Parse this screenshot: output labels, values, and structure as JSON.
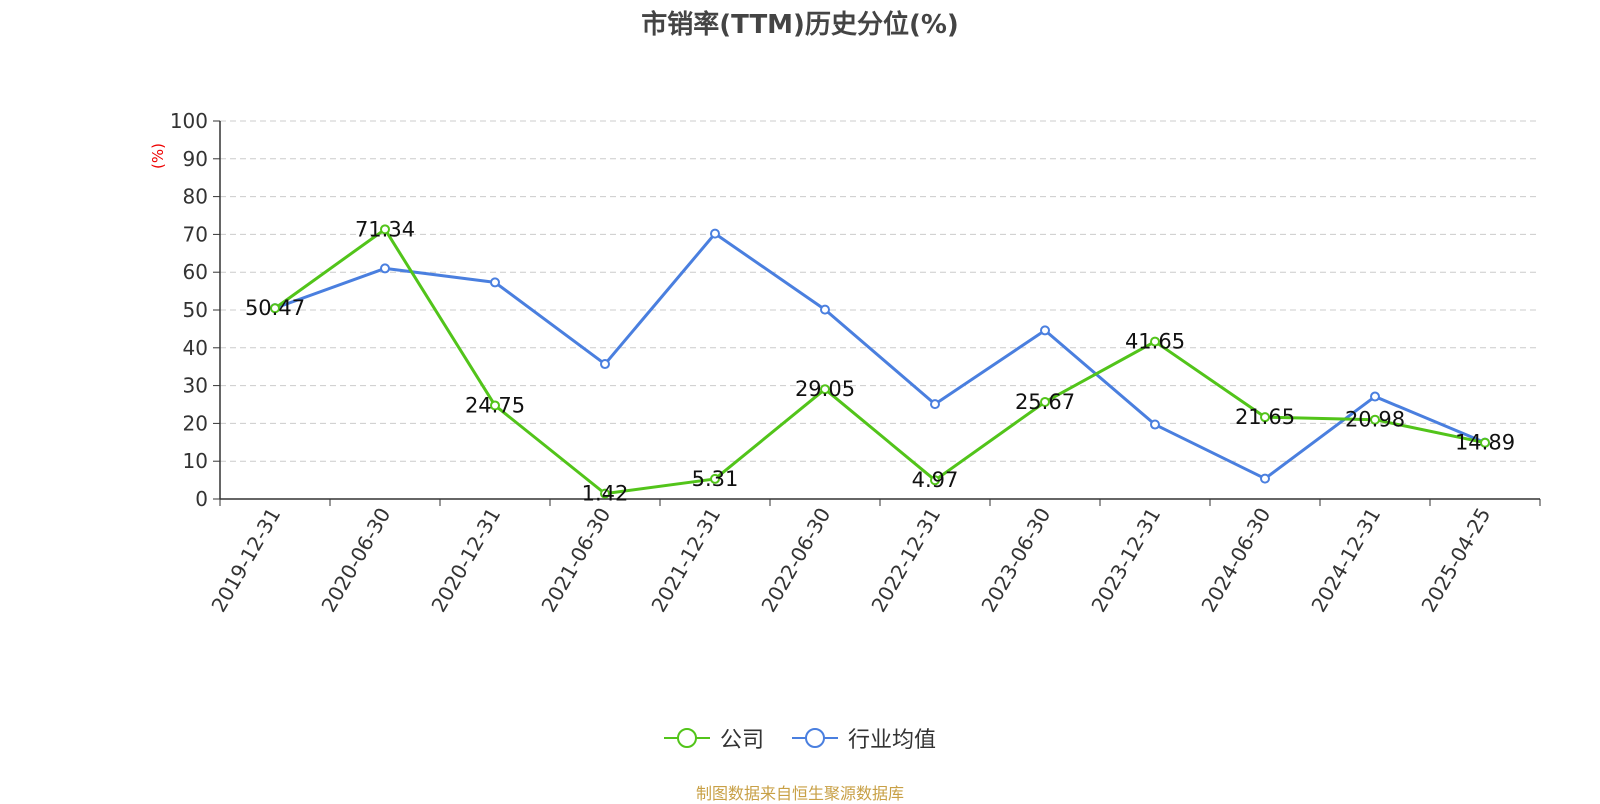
{
  "chart_data": {
    "type": "line",
    "title": "市销率(TTM)历史分位(%)",
    "ylabel": "(%)",
    "ylim": [
      0,
      100
    ],
    "yticks": [
      0,
      10,
      20,
      30,
      40,
      50,
      60,
      70,
      80,
      90,
      100
    ],
    "grid": true,
    "legend_position": "bottom",
    "categories": [
      "2019-12-31",
      "2020-06-30",
      "2020-12-31",
      "2021-06-30",
      "2021-12-31",
      "2022-06-30",
      "2022-12-31",
      "2023-06-30",
      "2023-12-31",
      "2024-06-30",
      "2024-12-31",
      "2025-04-25"
    ],
    "series": [
      {
        "name": "公司",
        "color": "#52c41a",
        "values": [
          50.47,
          71.34,
          24.75,
          1.42,
          5.31,
          29.05,
          4.97,
          25.67,
          41.65,
          21.65,
          20.98,
          14.89
        ],
        "labels": [
          "50.47",
          "71.34",
          "24.75",
          "1.42",
          "5.31",
          "29.05",
          "4.97",
          "25.67",
          "41.65",
          "21.65",
          "20.98",
          "14.89"
        ]
      },
      {
        "name": "行业均值",
        "color": "#4a7fdf",
        "values": [
          50.5,
          61.0,
          57.3,
          35.7,
          70.2,
          50.1,
          25.1,
          44.6,
          19.7,
          5.4,
          27.1,
          14.9
        ]
      }
    ]
  },
  "source": "制图数据来自恒生聚源数据库"
}
